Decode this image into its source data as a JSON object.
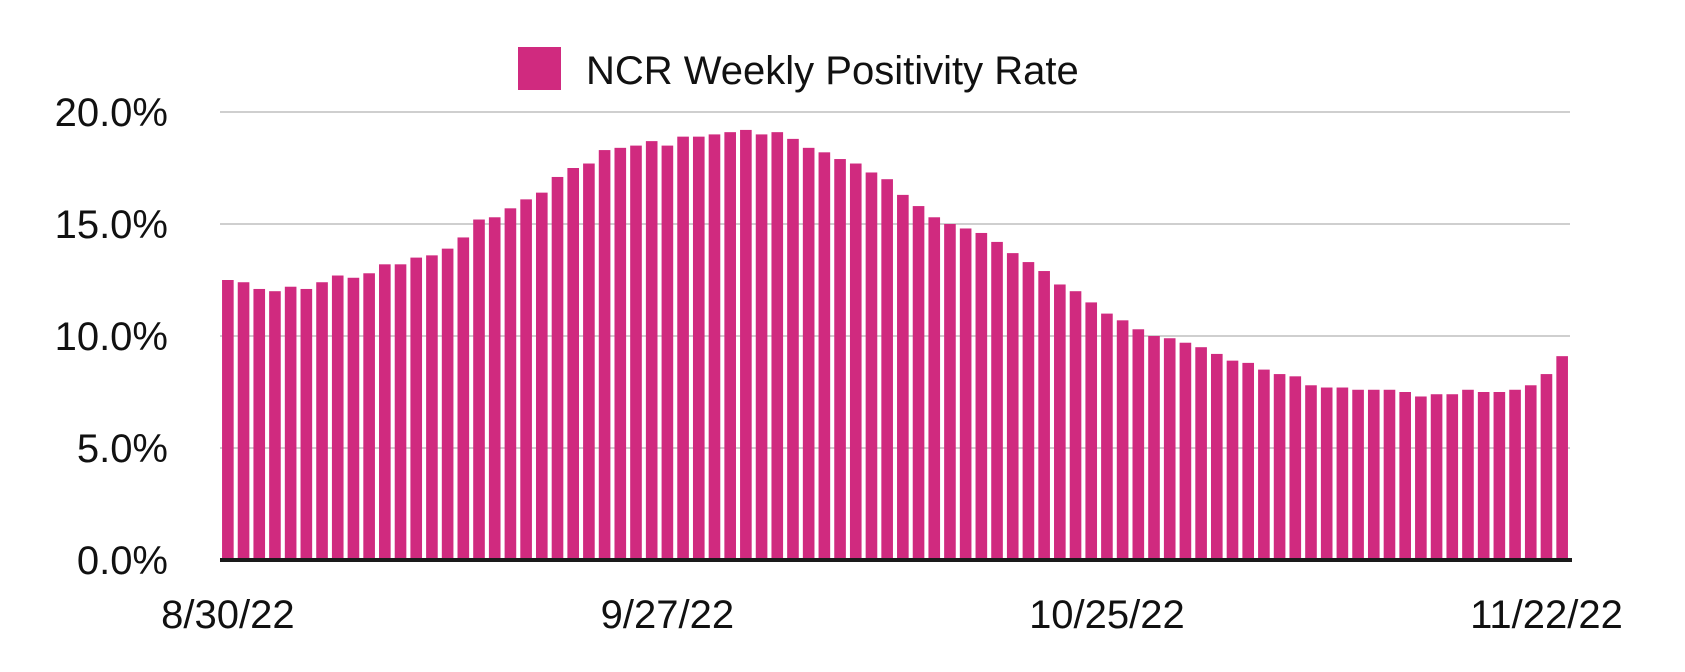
{
  "chart_data": {
    "type": "bar",
    "title": "",
    "xlabel": "",
    "ylabel": "",
    "ylim": [
      0,
      20
    ],
    "yticks": [
      0,
      5,
      10,
      15,
      20
    ],
    "ytick_labels": [
      "0.0%",
      "5.0%",
      "10.0%",
      "15.0%",
      "20.0%"
    ],
    "xtick_labels": [
      {
        "label": "8/30/22",
        "index": 0
      },
      {
        "label": "9/27/22",
        "index": 28
      },
      {
        "label": "10/25/22",
        "index": 56
      },
      {
        "label": "11/22/22",
        "index": 84
      }
    ],
    "grid": true,
    "legend_position": "top-center",
    "color": "#d02a7f",
    "series": [
      {
        "name": "NCR Weekly Positivity Rate",
        "values": [
          12.5,
          12.4,
          12.1,
          12.0,
          12.2,
          12.1,
          12.4,
          12.7,
          12.6,
          12.8,
          13.2,
          13.2,
          13.5,
          13.6,
          13.9,
          14.4,
          15.2,
          15.3,
          15.7,
          16.1,
          16.4,
          17.1,
          17.5,
          17.7,
          18.3,
          18.4,
          18.5,
          18.7,
          18.5,
          18.9,
          18.9,
          19.0,
          19.1,
          19.2,
          19.0,
          19.1,
          18.8,
          18.4,
          18.2,
          17.9,
          17.7,
          17.3,
          17.0,
          16.3,
          15.8,
          15.3,
          15.0,
          14.8,
          14.6,
          14.2,
          13.7,
          13.3,
          12.9,
          12.3,
          12.0,
          11.5,
          11.0,
          10.7,
          10.3,
          10.0,
          9.9,
          9.7,
          9.5,
          9.2,
          8.9,
          8.8,
          8.5,
          8.3,
          8.2,
          7.8,
          7.7,
          7.7,
          7.6,
          7.6,
          7.6,
          7.5,
          7.3,
          7.4,
          7.4,
          7.6,
          7.5,
          7.5,
          7.6,
          7.8,
          8.3,
          9.1
        ]
      }
    ]
  }
}
